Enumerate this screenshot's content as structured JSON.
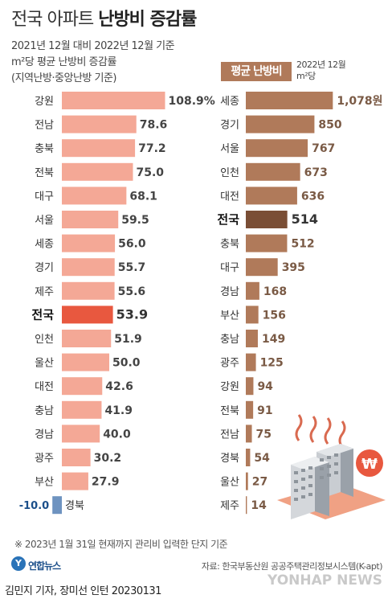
{
  "header": {
    "title_light": "전국 아파트",
    "title_bold": "난방비 증감률",
    "subtitle1": "2021년 12월 대비 2022년 12월 기준",
    "subtitle2": "m²당 평균 난방비 증감률",
    "subtitle3": "(지역난방·중앙난방 기준)"
  },
  "legend": {
    "label": "평균 난방비",
    "unit_line1": "2022년 12월",
    "unit_line2": "m²당"
  },
  "footer": {
    "note": "※ 2023년 1월 31일 현재까지 관리비 입력한 단지 기준",
    "source": "자료: 한국부동산원 공공주택관리정보시스템(K-apt)",
    "logo": "연합뉴스",
    "logo_mark": "Y",
    "byline": "김민지 기자, 장미선 인턴  20230131",
    "watermark": "YONHAP NEWS"
  },
  "colors": {
    "left_bar": "#f4a896",
    "left_highlight": "#e8583f",
    "left_negative": "#6e93c0",
    "right_bar": "#b07a5a",
    "right_highlight": "#7a4e35"
  },
  "chart_data": [
    {
      "type": "bar",
      "title": "난방비 증감률",
      "unit": "%",
      "categories": [
        "강원",
        "전남",
        "충북",
        "전북",
        "대구",
        "서울",
        "세종",
        "경기",
        "제주",
        "전국",
        "인천",
        "울산",
        "대전",
        "충남",
        "경남",
        "광주",
        "부산",
        "경북"
      ],
      "value_labels": [
        "108.9%",
        "78.6",
        "77.2",
        "75.0",
        "68.1",
        "59.5",
        "56.0",
        "55.7",
        "55.6",
        "53.9",
        "51.9",
        "50.0",
        "42.6",
        "41.9",
        "40.0",
        "30.2",
        "27.9",
        "-10.0"
      ],
      "values": [
        108.9,
        78.6,
        77.2,
        75.0,
        68.1,
        59.5,
        56.0,
        55.7,
        55.6,
        53.9,
        51.9,
        50.0,
        42.6,
        41.9,
        40.0,
        30.2,
        27.9,
        -10.0
      ],
      "highlight": "전국"
    },
    {
      "type": "bar",
      "title": "평균 난방비",
      "unit": "원/m²",
      "categories": [
        "세종",
        "경기",
        "서울",
        "인천",
        "대전",
        "전국",
        "충북",
        "대구",
        "경남",
        "부산",
        "충남",
        "광주",
        "강원",
        "전북",
        "전남",
        "경북",
        "울산",
        "제주"
      ],
      "value_labels": [
        "1,078원",
        "850",
        "767",
        "673",
        "636",
        "514",
        "512",
        "395",
        "168",
        "156",
        "149",
        "125",
        "94",
        "91",
        "75",
        "54",
        "27",
        "14"
      ],
      "values": [
        1078,
        850,
        767,
        673,
        636,
        514,
        512,
        395,
        168,
        156,
        149,
        125,
        94,
        91,
        75,
        54,
        27,
        14
      ],
      "highlight": "전국"
    }
  ]
}
